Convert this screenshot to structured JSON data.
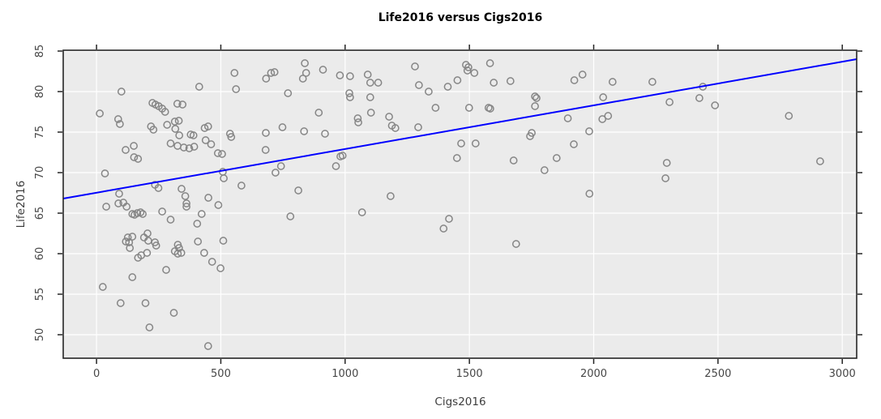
{
  "figure": {
    "title": "Life2016 versus Cigs2016",
    "xlabel": "Cigs2016",
    "ylabel": "Life2016"
  },
  "style": {
    "figure_bg": "#ffffff",
    "panel_bg": "#ebebeb",
    "grid_color": "#ffffff",
    "axis_color": "#242424",
    "tick_label_color": "#474747",
    "point_color": "#858585",
    "line_color": "#0000ff"
  },
  "chart_data": {
    "type": "scatter",
    "title": "Life2016 versus Cigs2016",
    "xlabel": "Cigs2016",
    "ylabel": "Life2016",
    "xlim": [
      -134,
      3058
    ],
    "ylim": [
      47.1,
      85.1
    ],
    "xticks": [
      0,
      500,
      1000,
      1500,
      2000,
      2500,
      3000
    ],
    "yticks": [
      50,
      55,
      60,
      65,
      70,
      75,
      80,
      85
    ],
    "grid": true,
    "legend_position": "none",
    "marker": "open-circle",
    "regression_line": {
      "color": "#0000ff",
      "points": [
        [
          -134,
          66.8
        ],
        [
          3058,
          84.0
        ]
      ]
    },
    "points": [
      [
        13,
        77.3
      ],
      [
        100,
        80.0
      ],
      [
        87,
        76.6
      ],
      [
        94,
        76.0
      ],
      [
        117,
        72.8
      ],
      [
        150,
        73.3
      ],
      [
        151,
        71.9
      ],
      [
        167,
        71.7
      ],
      [
        34,
        69.9
      ],
      [
        91,
        67.4
      ],
      [
        225,
        78.6
      ],
      [
        237,
        78.4
      ],
      [
        250,
        78.2
      ],
      [
        264,
        77.9
      ],
      [
        276,
        77.5
      ],
      [
        219,
        75.7
      ],
      [
        229,
        75.3
      ],
      [
        284,
        75.9
      ],
      [
        315,
        76.3
      ],
      [
        331,
        76.4
      ],
      [
        325,
        78.5
      ],
      [
        346,
        78.4
      ],
      [
        317,
        75.4
      ],
      [
        333,
        74.6
      ],
      [
        298,
        73.6
      ],
      [
        326,
        73.3
      ],
      [
        351,
        73.1
      ],
      [
        373,
        73.0
      ],
      [
        393,
        73.2
      ],
      [
        379,
        74.7
      ],
      [
        390,
        74.6
      ],
      [
        413,
        80.6
      ],
      [
        435,
        75.5
      ],
      [
        449,
        75.7
      ],
      [
        439,
        74.0
      ],
      [
        461,
        73.5
      ],
      [
        488,
        72.4
      ],
      [
        505,
        72.3
      ],
      [
        512,
        69.3
      ],
      [
        508,
        70.1
      ],
      [
        555,
        82.3
      ],
      [
        561,
        80.3
      ],
      [
        537,
        74.8
      ],
      [
        542,
        74.4
      ],
      [
        583,
        68.4
      ],
      [
        682,
        81.6
      ],
      [
        702,
        82.3
      ],
      [
        716,
        82.4
      ],
      [
        681,
        74.9
      ],
      [
        680,
        72.8
      ],
      [
        720,
        70.0
      ],
      [
        742,
        70.8
      ],
      [
        748,
        75.6
      ],
      [
        770,
        79.8
      ],
      [
        812,
        67.8
      ],
      [
        830,
        81.6
      ],
      [
        838,
        83.5
      ],
      [
        843,
        82.3
      ],
      [
        835,
        75.1
      ],
      [
        894,
        77.4
      ],
      [
        911,
        82.7
      ],
      [
        919,
        74.8
      ],
      [
        235,
        68.5
      ],
      [
        249,
        68.1
      ],
      [
        342,
        68.0
      ],
      [
        357,
        67.1
      ],
      [
        362,
        66.2
      ],
      [
        362,
        65.8
      ],
      [
        450,
        66.9
      ],
      [
        490,
        66.0
      ],
      [
        979,
        82.0
      ],
      [
        1020,
        81.9
      ],
      [
        1091,
        82.1
      ],
      [
        1101,
        81.1
      ],
      [
        1133,
        81.1
      ],
      [
        1017,
        79.8
      ],
      [
        1020,
        79.3
      ],
      [
        1101,
        79.3
      ],
      [
        1051,
        76.7
      ],
      [
        1053,
        76.2
      ],
      [
        1104,
        77.4
      ],
      [
        1177,
        76.9
      ],
      [
        1188,
        75.8
      ],
      [
        1202,
        75.5
      ],
      [
        1281,
        83.1
      ],
      [
        1297,
        80.8
      ],
      [
        1336,
        80.0
      ],
      [
        1294,
        75.6
      ],
      [
        1364,
        78.0
      ],
      [
        1413,
        80.6
      ],
      [
        1452,
        81.4
      ],
      [
        1486,
        83.3
      ],
      [
        1496,
        83.0
      ],
      [
        1492,
        82.6
      ],
      [
        1520,
        82.3
      ],
      [
        1583,
        83.5
      ],
      [
        1598,
        81.1
      ],
      [
        1665,
        81.3
      ],
      [
        1499,
        78.0
      ],
      [
        1577,
        78.0
      ],
      [
        1584,
        77.9
      ],
      [
        1467,
        73.6
      ],
      [
        1525,
        73.6
      ],
      [
        1450,
        71.8
      ],
      [
        1678,
        71.5
      ],
      [
        1764,
        79.4
      ],
      [
        1770,
        79.2
      ],
      [
        1764,
        78.2
      ],
      [
        1744,
        74.5
      ],
      [
        1751,
        74.9
      ],
      [
        1802,
        70.3
      ],
      [
        1851,
        71.8
      ],
      [
        1896,
        76.7
      ],
      [
        1920,
        73.5
      ],
      [
        1922,
        81.4
      ],
      [
        1955,
        82.1
      ],
      [
        1982,
        75.1
      ],
      [
        1983,
        67.4
      ],
      [
        1183,
        67.1
      ],
      [
        963,
        70.8
      ],
      [
        981,
        72.0
      ],
      [
        990,
        72.1
      ],
      [
        1068,
        65.1
      ],
      [
        1418,
        64.3
      ],
      [
        1396,
        63.1
      ],
      [
        1688,
        61.2
      ],
      [
        2076,
        81.2
      ],
      [
        2236,
        81.2
      ],
      [
        2038,
        79.3
      ],
      [
        2035,
        76.6
      ],
      [
        2058,
        77.0
      ],
      [
        2305,
        78.7
      ],
      [
        2425,
        79.2
      ],
      [
        2439,
        80.6
      ],
      [
        2488,
        78.3
      ],
      [
        2785,
        77.0
      ],
      [
        2294,
        71.2
      ],
      [
        2289,
        69.3
      ],
      [
        2911,
        71.4
      ],
      [
        39,
        65.8
      ],
      [
        88,
        66.2
      ],
      [
        108,
        66.3
      ],
      [
        121,
        65.8
      ],
      [
        144,
        64.9
      ],
      [
        153,
        64.8
      ],
      [
        164,
        65.0
      ],
      [
        177,
        65.1
      ],
      [
        186,
        64.9
      ],
      [
        264,
        65.2
      ],
      [
        298,
        64.2
      ],
      [
        405,
        63.7
      ],
      [
        423,
        64.9
      ],
      [
        780,
        64.6
      ],
      [
        126,
        62.0
      ],
      [
        144,
        62.1
      ],
      [
        118,
        61.5
      ],
      [
        131,
        61.4
      ],
      [
        134,
        60.7
      ],
      [
        191,
        62.0
      ],
      [
        205,
        62.5
      ],
      [
        208,
        61.6
      ],
      [
        235,
        61.4
      ],
      [
        240,
        61.0
      ],
      [
        167,
        59.5
      ],
      [
        180,
        59.8
      ],
      [
        203,
        60.1
      ],
      [
        327,
        61.1
      ],
      [
        332,
        60.7
      ],
      [
        315,
        60.3
      ],
      [
        327,
        60.0
      ],
      [
        341,
        60.1
      ],
      [
        408,
        61.5
      ],
      [
        510,
        61.6
      ],
      [
        433,
        60.1
      ],
      [
        465,
        59.0
      ],
      [
        499,
        58.2
      ],
      [
        280,
        58.0
      ],
      [
        144,
        57.1
      ],
      [
        25,
        55.9
      ],
      [
        97,
        53.9
      ],
      [
        197,
        53.9
      ],
      [
        311,
        52.7
      ],
      [
        213,
        50.9
      ],
      [
        449,
        48.6
      ]
    ]
  }
}
